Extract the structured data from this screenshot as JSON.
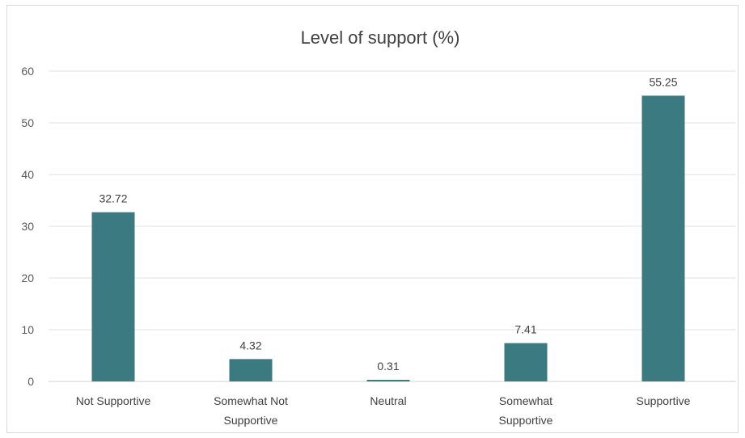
{
  "chart_data": {
    "type": "bar",
    "title": "Level of support (%)",
    "categories": [
      [
        "Not Supportive"
      ],
      [
        "Somewhat Not",
        "Supportive"
      ],
      [
        "Neutral"
      ],
      [
        "Somewhat",
        "Supportive"
      ],
      [
        "Supportive"
      ]
    ],
    "values": [
      32.72,
      4.32,
      0.31,
      7.41,
      55.25
    ],
    "value_labels": [
      "32.72",
      "4.32",
      "0.31",
      "7.41",
      "55.25"
    ],
    "yticks": [
      "0",
      "10",
      "20",
      "30",
      "40",
      "50",
      "60"
    ],
    "ylim": [
      0,
      60
    ],
    "xlabel": "",
    "ylabel": "",
    "grid": true,
    "legend": "none",
    "bar_color": "#3a7a80"
  }
}
